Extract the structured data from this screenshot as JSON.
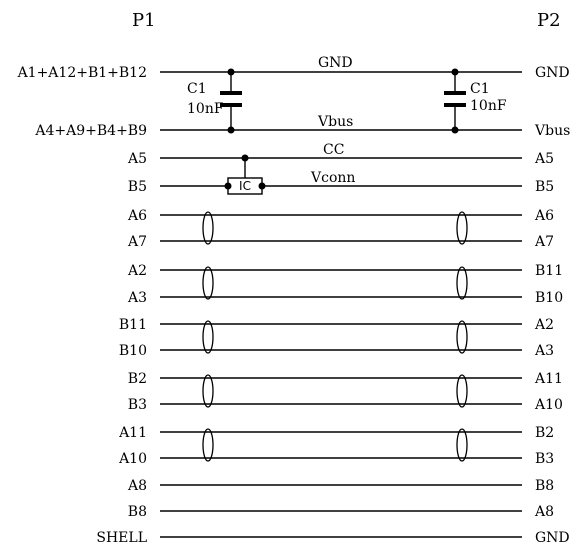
{
  "headers": {
    "left": "P1",
    "right": "P2"
  },
  "rows": [
    {
      "left": "A1+A12+B1+B12",
      "right": "GND"
    },
    {
      "left": "A4+A9+B4+B9",
      "right": "Vbus"
    },
    {
      "left": "A5",
      "right": "A5"
    },
    {
      "left": "B5",
      "right": "B5"
    },
    {
      "left": "A6",
      "right": "A6"
    },
    {
      "left": "A7",
      "right": "A7"
    },
    {
      "left": "A2",
      "right": "B11"
    },
    {
      "left": "A3",
      "right": "B10"
    },
    {
      "left": "B11",
      "right": "A2"
    },
    {
      "left": "B10",
      "right": "A3"
    },
    {
      "left": "B2",
      "right": "A11"
    },
    {
      "left": "B3",
      "right": "A10"
    },
    {
      "left": "A11",
      "right": "B2"
    },
    {
      "left": "A10",
      "right": "B3"
    },
    {
      "left": "A8",
      "right": "B8"
    },
    {
      "left": "B8",
      "right": "A8"
    },
    {
      "left": "SHELL",
      "right": "GND"
    }
  ],
  "nets": {
    "gnd": "GND",
    "vbus": "Vbus",
    "cc": "CC",
    "vconn": "Vconn"
  },
  "capacitors": [
    {
      "name": "C1",
      "value": "10nF"
    },
    {
      "name": "C1",
      "value": "10nF"
    }
  ],
  "ic_label": "IC",
  "twisted_pairs": 5
}
